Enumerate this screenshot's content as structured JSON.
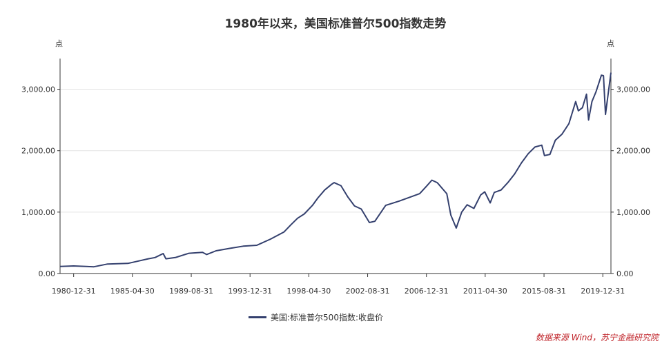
{
  "title": "1980年以来，美国标准普尔500指数走势",
  "unit_left": "点",
  "unit_right": "点",
  "source": "数据来源 Wind，苏宁金融研究院",
  "legend": [
    "美国:标准普尔500指数:收盘价"
  ],
  "colors": {
    "series": "#34406e",
    "grid": "#e3e3e3",
    "axis": "#333333",
    "source": "#c0242a"
  },
  "chart_data": {
    "type": "line",
    "title": "1980年以来，美国标准普尔500指数走势",
    "ylabel": "点",
    "ylim": [
      0,
      3500
    ],
    "grid": true,
    "legend_position": "bottom",
    "yticks": [
      0,
      1000,
      2000,
      3000
    ],
    "ytick_labels": [
      "0.00",
      "1,000.00",
      "2,000.00",
      "3,000.00"
    ],
    "xticks": [
      "1980-12-31",
      "1985-04-30",
      "1989-08-31",
      "1993-12-31",
      "1998-04-30",
      "2002-08-31",
      "2006-12-31",
      "2011-04-30",
      "2015-08-31",
      "2019-12-31"
    ],
    "series": [
      {
        "name": "美国:标准普尔500指数:收盘价",
        "x": [
          1980.0,
          1981.0,
          1982.5,
          1983.5,
          1985.0,
          1985.9,
          1986.5,
          1987.0,
          1987.6,
          1987.8,
          1988.5,
          1989.5,
          1990.5,
          1990.8,
          1991.5,
          1992.5,
          1993.5,
          1994.5,
          1995.5,
          1996.5,
          1997.0,
          1997.5,
          1998.0,
          1998.6,
          1999.0,
          1999.5,
          2000.0,
          2000.2,
          2000.7,
          2001.2,
          2001.7,
          2002.2,
          2002.8,
          2003.2,
          2004.0,
          2005.0,
          2006.0,
          2006.5,
          2007.0,
          2007.4,
          2007.8,
          2008.5,
          2008.8,
          2009.2,
          2009.6,
          2010.0,
          2010.5,
          2011.0,
          2011.3,
          2011.7,
          2012.0,
          2012.5,
          2013.0,
          2013.5,
          2014.0,
          2014.5,
          2015.0,
          2015.5,
          2015.7,
          2016.1,
          2016.5,
          2017.0,
          2017.5,
          2018.0,
          2018.2,
          2018.5,
          2018.8,
          2018.95,
          2019.2,
          2019.5,
          2019.9,
          2020.05,
          2020.2,
          2020.5,
          2020.6
        ],
        "values": [
          115,
          123,
          110,
          155,
          165,
          210,
          240,
          260,
          325,
          240,
          260,
          330,
          345,
          310,
          370,
          410,
          445,
          460,
          560,
          675,
          790,
          900,
          970,
          1110,
          1230,
          1360,
          1450,
          1480,
          1430,
          1250,
          1100,
          1050,
          830,
          850,
          1110,
          1180,
          1260,
          1300,
          1420,
          1520,
          1480,
          1300,
          950,
          740,
          1000,
          1120,
          1060,
          1280,
          1330,
          1150,
          1320,
          1360,
          1480,
          1620,
          1800,
          1950,
          2060,
          2090,
          1920,
          1940,
          2170,
          2270,
          2440,
          2800,
          2650,
          2700,
          2920,
          2500,
          2800,
          2960,
          3230,
          3220,
          2590,
          3100,
          3270
        ]
      }
    ]
  }
}
